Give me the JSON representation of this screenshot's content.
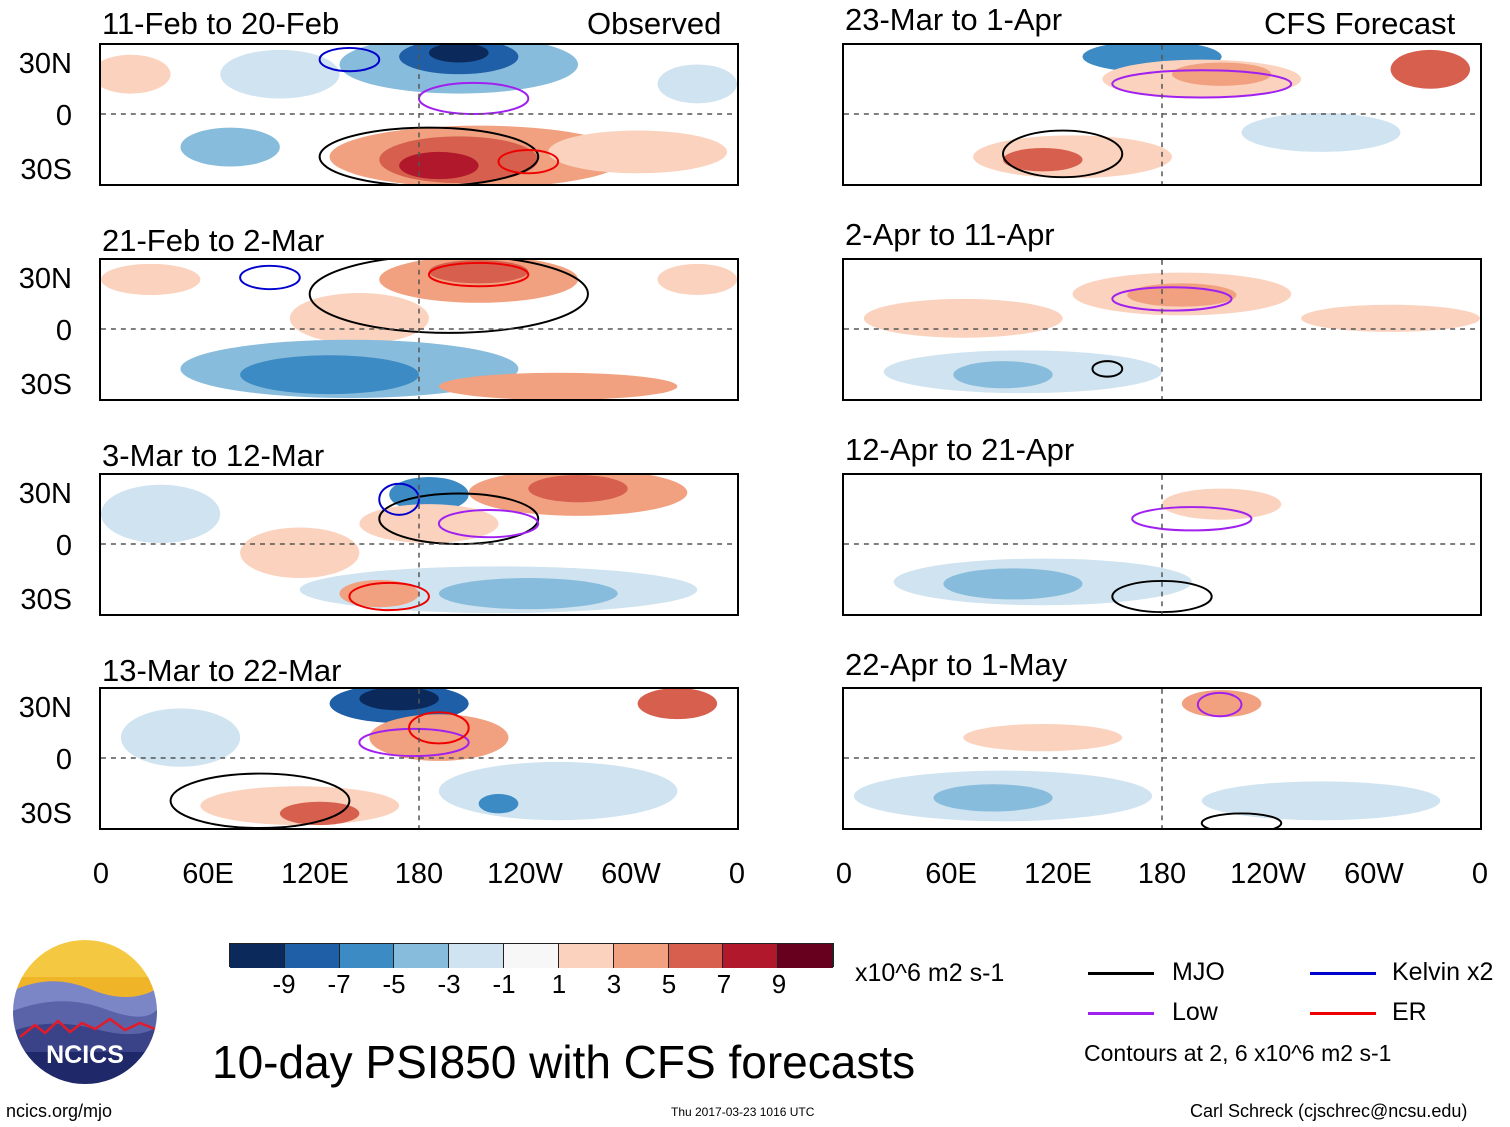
{
  "header": {
    "left_label": "Observed",
    "right_label": "CFS Forecast"
  },
  "panels": [
    {
      "title": "11-Feb to 20-Feb",
      "side": "left"
    },
    {
      "title": "21-Feb to 2-Mar",
      "side": "left"
    },
    {
      "title": "3-Mar to 12-Mar",
      "side": "left"
    },
    {
      "title": "13-Mar to 22-Mar",
      "side": "left"
    },
    {
      "title": "23-Mar to 1-Apr",
      "side": "right"
    },
    {
      "title": "2-Apr to 11-Apr",
      "side": "right"
    },
    {
      "title": "12-Apr to 21-Apr",
      "side": "right"
    },
    {
      "title": "22-Apr to 1-May",
      "side": "right"
    }
  ],
  "chart_data": {
    "type": "heatmap",
    "title": "10-day PSI850 with CFS forecasts",
    "variable": "PSI850 anomaly",
    "units": "x10^6 m2 s-1",
    "ylabel_ticks": [
      "30N",
      "0",
      "30S"
    ],
    "xlabel_ticks": [
      "0",
      "60E",
      "120E",
      "180",
      "120W",
      "60W",
      "0"
    ],
    "x_range": [
      0,
      360
    ],
    "y_range": [
      -40,
      40
    ],
    "colorbar": {
      "ticks": [
        "-9",
        "-7",
        "-5",
        "-3",
        "-1",
        "1",
        "3",
        "5",
        "7",
        "9"
      ],
      "colors": [
        "#0b2a5b",
        "#1f5fa8",
        "#3d8bc4",
        "#88bcdc",
        "#cfe3f0",
        "#f7f7f7",
        "#fbd2bd",
        "#f1a17f",
        "#d6604d",
        "#b2182b",
        "#67001f"
      ]
    },
    "contour_legend": [
      {
        "label": "MJO",
        "color": "#000000"
      },
      {
        "label": "Kelvin x2",
        "color": "#0000cc"
      },
      {
        "label": "Low",
        "color": "#a020f0"
      },
      {
        "label": "ER",
        "color": "#ee0000"
      }
    ],
    "contour_note": "Contours at 2, 6 x10^6 m2 s-1"
  },
  "footer": {
    "logo_text": "NCICS",
    "url": "ncics.org/mjo",
    "timestamp": "Thu 2017-03-23 1016 UTC",
    "credit": "Carl Schreck (cjschrec@ncsu.edu)"
  }
}
